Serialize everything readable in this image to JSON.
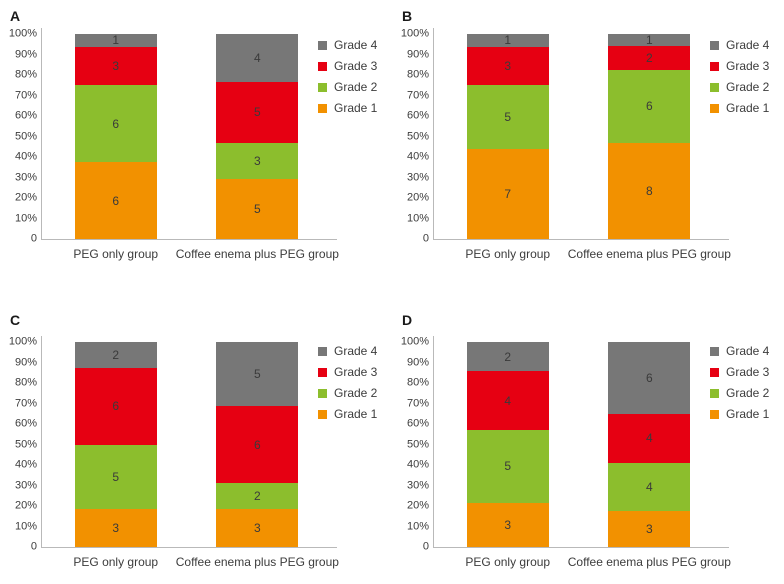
{
  "figure": {
    "description": "Four-panel 100% stacked bar figure comparing bowel-preparation grades",
    "background": "#FFFFFF"
  },
  "shared": {
    "y_axis_ticks": [
      "100%",
      "90%",
      "80%",
      "70%",
      "60%",
      "50%",
      "40%",
      "30%",
      "20%",
      "10%",
      "0"
    ],
    "legend_position": "right",
    "legend": [
      {
        "label": "Grade 4",
        "color": "#777777"
      },
      {
        "label": "Grade 3",
        "color": "#E60012"
      },
      {
        "label": "Grade 2",
        "color": "#8CBE2D"
      },
      {
        "label": "Grade 1",
        "color": "#F29100"
      }
    ],
    "axis_color": "#B9B9B9"
  },
  "chart_data": [
    {
      "type": "bar",
      "panel": "A",
      "stacked": true,
      "y_axis": "percent",
      "ylim": [
        0,
        100
      ],
      "grid": false,
      "categories": [
        "PEG only group",
        "Coffee enema plus PEG group"
      ],
      "series": [
        {
          "name": "Grade 1",
          "values": [
            6,
            5
          ]
        },
        {
          "name": "Grade 2",
          "values": [
            6,
            3
          ]
        },
        {
          "name": "Grade 3",
          "values": [
            3,
            5
          ]
        },
        {
          "name": "Grade 4",
          "values": [
            1,
            4
          ]
        }
      ]
    },
    {
      "type": "bar",
      "panel": "B",
      "stacked": true,
      "y_axis": "percent",
      "ylim": [
        0,
        100
      ],
      "grid": false,
      "categories": [
        "PEG only group",
        "Coffee enema plus PEG group"
      ],
      "series": [
        {
          "name": "Grade 1",
          "values": [
            7,
            8
          ]
        },
        {
          "name": "Grade 2",
          "values": [
            5,
            6
          ]
        },
        {
          "name": "Grade 3",
          "values": [
            3,
            2
          ]
        },
        {
          "name": "Grade 4",
          "values": [
            1,
            1
          ]
        }
      ]
    },
    {
      "type": "bar",
      "panel": "C",
      "stacked": true,
      "y_axis": "percent",
      "ylim": [
        0,
        100
      ],
      "grid": false,
      "categories": [
        "PEG only group",
        "Coffee enema plus PEG group"
      ],
      "series": [
        {
          "name": "Grade 1",
          "values": [
            3,
            3
          ]
        },
        {
          "name": "Grade 2",
          "values": [
            5,
            2
          ]
        },
        {
          "name": "Grade 3",
          "values": [
            6,
            6
          ]
        },
        {
          "name": "Grade 4",
          "values": [
            2,
            5
          ]
        }
      ]
    },
    {
      "type": "bar",
      "panel": "D",
      "stacked": true,
      "y_axis": "percent",
      "ylim": [
        0,
        100
      ],
      "grid": false,
      "categories": [
        "PEG only group",
        "Coffee enema plus PEG group"
      ],
      "series": [
        {
          "name": "Grade 1",
          "values": [
            3,
            3
          ]
        },
        {
          "name": "Grade 2",
          "values": [
            5,
            4
          ]
        },
        {
          "name": "Grade 3",
          "values": [
            4,
            4
          ]
        },
        {
          "name": "Grade 4",
          "values": [
            2,
            6
          ]
        }
      ]
    }
  ]
}
